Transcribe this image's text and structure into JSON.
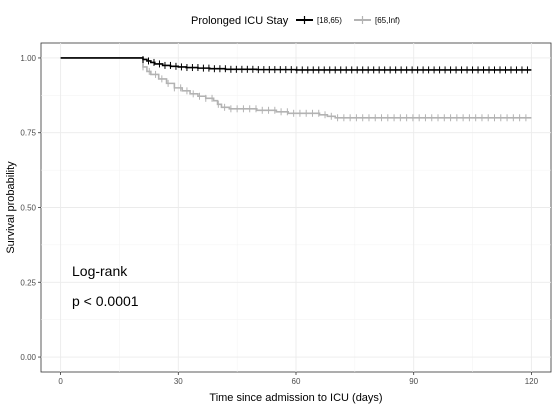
{
  "chart_data": {
    "type": "line",
    "subtype": "kaplan-meier-survival",
    "xlabel": "Time since admission to ICU (days)",
    "ylabel": "Survival probability",
    "xlim": [
      -5,
      125
    ],
    "ylim": [
      -0.05,
      1.05
    ],
    "xticks": [
      0,
      30,
      60,
      90,
      120
    ],
    "yticks": [
      0.0,
      0.25,
      0.5,
      0.75,
      1.0
    ],
    "xtick_labels": [
      "0",
      "30",
      "60",
      "90",
      "120"
    ],
    "ytick_labels": [
      "0.00",
      "0.25",
      "0.50",
      "0.75",
      "1.00"
    ],
    "grid": true,
    "legend": {
      "position": "top",
      "title": "Prolonged ICU Stay"
    },
    "series": [
      {
        "name": "[18,65)",
        "color": "#000000",
        "steps": [
          [
            0,
            1.0
          ],
          [
            20,
            1.0
          ],
          [
            21,
            0.995
          ],
          [
            22,
            0.99
          ],
          [
            23,
            0.985
          ],
          [
            24,
            0.98
          ],
          [
            26,
            0.975
          ],
          [
            28,
            0.972
          ],
          [
            30,
            0.97
          ],
          [
            32,
            0.968
          ],
          [
            35,
            0.966
          ],
          [
            38,
            0.964
          ],
          [
            42,
            0.962
          ],
          [
            50,
            0.961
          ],
          [
            60,
            0.96
          ],
          [
            120,
            0.96
          ]
        ],
        "censor_range": [
          21,
          120
        ],
        "censor_step": 1.4
      },
      {
        "name": "[65,Inf)",
        "color": "#b3b3b3",
        "steps": [
          [
            0,
            1.0
          ],
          [
            20,
            1.0
          ],
          [
            21,
            0.97
          ],
          [
            22,
            0.955
          ],
          [
            23,
            0.945
          ],
          [
            25,
            0.93
          ],
          [
            27,
            0.915
          ],
          [
            29,
            0.9
          ],
          [
            31,
            0.89
          ],
          [
            33,
            0.88
          ],
          [
            35,
            0.872
          ],
          [
            37,
            0.865
          ],
          [
            39,
            0.857
          ],
          [
            40,
            0.845
          ],
          [
            41,
            0.835
          ],
          [
            43,
            0.83
          ],
          [
            50,
            0.825
          ],
          [
            55,
            0.82
          ],
          [
            58,
            0.815
          ],
          [
            66,
            0.81
          ],
          [
            68,
            0.805
          ],
          [
            70,
            0.8
          ],
          [
            120,
            0.8
          ]
        ],
        "censor_range": [
          21,
          120
        ],
        "censor_step": 1.6
      }
    ],
    "annotations": [
      "Log-rank",
      "p < 0.0001"
    ]
  }
}
